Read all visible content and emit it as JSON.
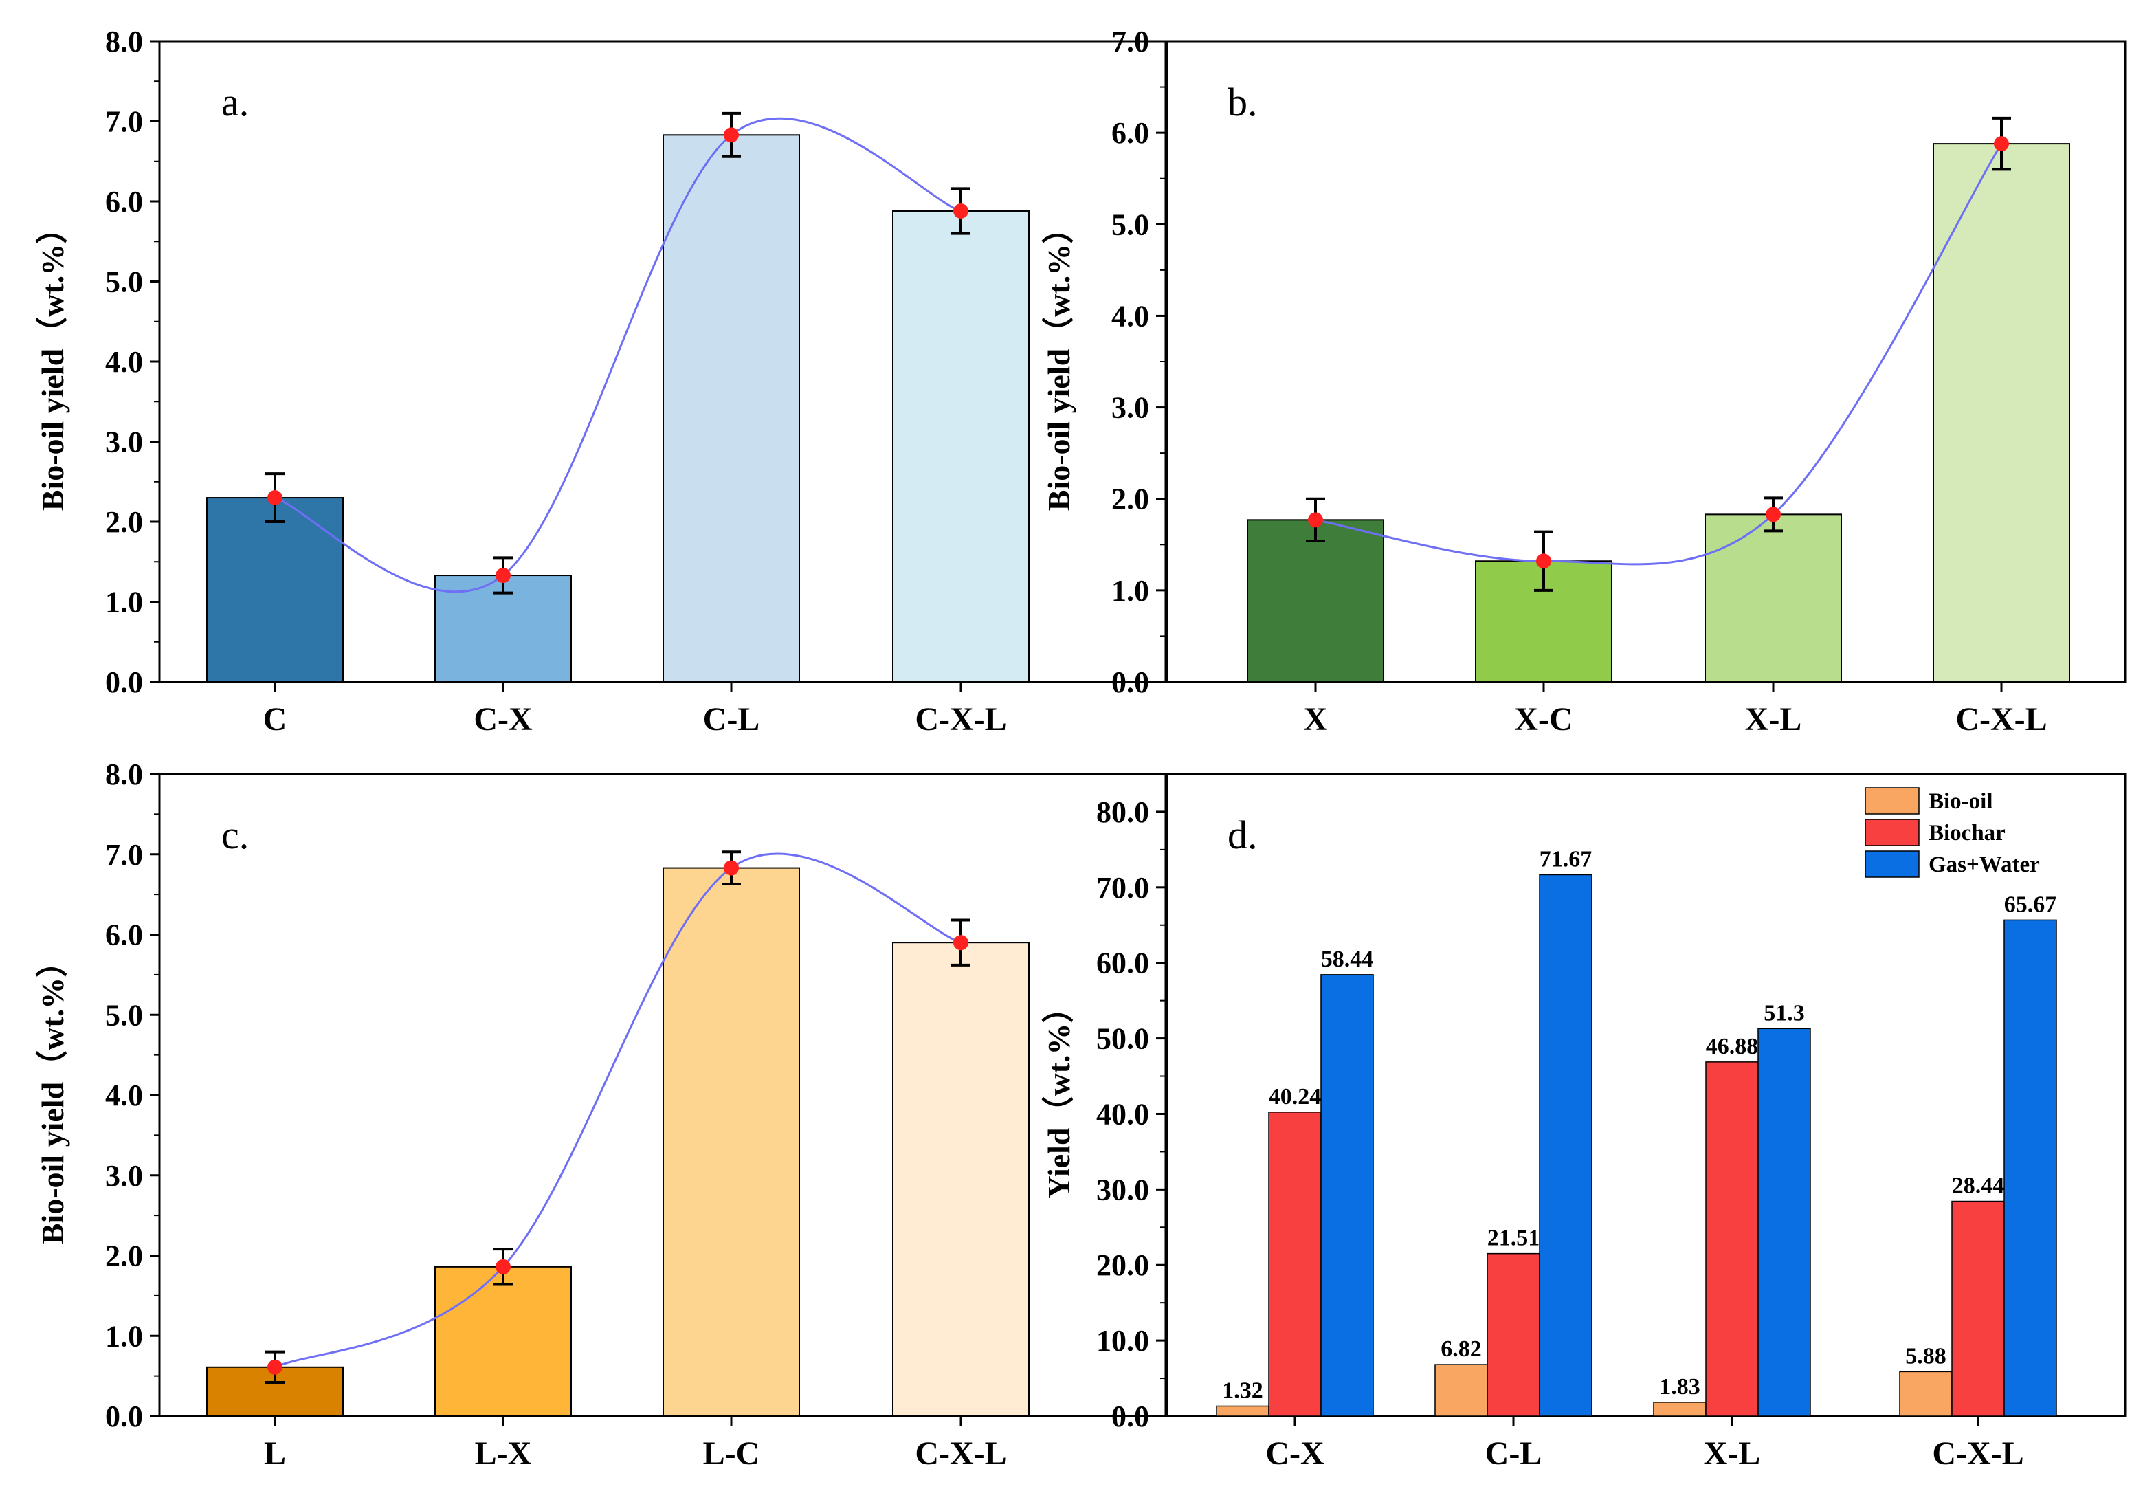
{
  "chart_data": [
    {
      "type": "bar",
      "panel_label": "a.",
      "ylabel": "Bio-oil yield（wt.%）",
      "ylim": [
        0,
        8
      ],
      "yticks": [
        "0.0",
        "1.0",
        "2.0",
        "3.0",
        "4.0",
        "5.0",
        "6.0",
        "7.0",
        "8.0"
      ],
      "categories": [
        "C",
        "C-X",
        "C-L",
        "C-X-L"
      ],
      "values": [
        2.3,
        1.33,
        6.83,
        5.88
      ],
      "errors": [
        0.3,
        0.22,
        0.27,
        0.28
      ],
      "colors": [
        "#2e75a8",
        "#7ab4de",
        "#c9dff0",
        "#d5ebf4"
      ],
      "line_color": "#6f6ff5",
      "marker_color": "#ff2020"
    },
    {
      "type": "bar",
      "panel_label": "b.",
      "ylabel": "Bio-oil yield（wt.%）",
      "ylim": [
        0,
        7
      ],
      "yticks": [
        "0.0",
        "1.0",
        "2.0",
        "3.0",
        "4.0",
        "5.0",
        "6.0",
        "7.0"
      ],
      "categories": [
        "X",
        "X-C",
        "X-L",
        "C-X-L"
      ],
      "values": [
        1.77,
        1.32,
        1.83,
        5.88
      ],
      "errors": [
        0.23,
        0.32,
        0.18,
        0.28
      ],
      "colors": [
        "#3f7d3a",
        "#90cc4a",
        "#b8dd8c",
        "#d5eab8"
      ],
      "line_color": "#6f6ff5",
      "marker_color": "#ff2020"
    },
    {
      "type": "bar",
      "panel_label": "c.",
      "ylabel": "Bio-oil yield（wt.%）",
      "ylim": [
        0,
        8
      ],
      "yticks": [
        "0.0",
        "1.0",
        "2.0",
        "3.0",
        "4.0",
        "5.0",
        "6.0",
        "7.0",
        "8.0"
      ],
      "categories": [
        "L",
        "L-X",
        "L-C",
        "C-X-L"
      ],
      "values": [
        0.61,
        1.86,
        6.83,
        5.9
      ],
      "errors": [
        0.19,
        0.22,
        0.2,
        0.28
      ],
      "colors": [
        "#d98200",
        "#ffb638",
        "#fdd591",
        "#ffecd3"
      ],
      "line_color": "#6f6ff5",
      "marker_color": "#ff2020"
    },
    {
      "type": "bar",
      "panel_label": "d.",
      "ylabel": "Yield（wt.%）",
      "ylim": [
        0,
        85
      ],
      "yticks": [
        "0.0",
        "10.0",
        "20.0",
        "30.0",
        "40.0",
        "50.0",
        "60.0",
        "70.0",
        "80.0"
      ],
      "categories": [
        "C-X",
        "C-L",
        "X-L",
        "C-X-L"
      ],
      "series": [
        {
          "name": "Bio-oil",
          "color": "#f9a663",
          "values": [
            1.32,
            6.82,
            1.83,
            5.88
          ],
          "labels": [
            "1.32",
            "6.82",
            "1.83",
            "5.88"
          ]
        },
        {
          "name": "Biochar",
          "color": "#f94040",
          "values": [
            40.24,
            21.51,
            46.88,
            28.44
          ],
          "labels": [
            "40.24",
            "21.51",
            "46.88",
            "28.44"
          ]
        },
        {
          "name": "Gas+Water",
          "color": "#0b6fe4",
          "values": [
            58.44,
            71.67,
            51.3,
            65.67
          ],
          "labels": [
            "58.44",
            "71.67",
            "51.3",
            "65.67"
          ]
        }
      ],
      "legend": "top-right"
    }
  ]
}
